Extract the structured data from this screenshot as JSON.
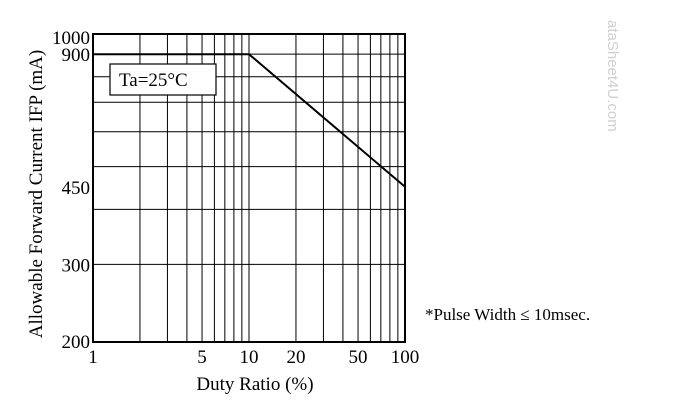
{
  "chart_data": {
    "type": "line",
    "xlabel": "Duty Ratio (%)",
    "ylabel": "Allowable Forward Current IFP (mA)",
    "x_scale": "log",
    "y_scale": "log",
    "xlim": [
      1,
      100
    ],
    "ylim": [
      200,
      1000
    ],
    "x_ticks": [
      "1",
      "5",
      "10",
      "20",
      "50",
      "100"
    ],
    "x_tick_values": [
      1,
      5,
      10,
      20,
      50,
      100
    ],
    "y_ticks": [
      "200",
      "300",
      "450",
      "900",
      "1000"
    ],
    "y_tick_values": [
      200,
      300,
      450,
      900,
      1000
    ],
    "grid": true,
    "series": [
      {
        "x": [
          1,
          10,
          100
        ],
        "y": [
          900,
          900,
          450
        ]
      }
    ],
    "annotation": "Ta=25°C",
    "note": "*Pulse Width ≤  10msec."
  },
  "watermark": "ataSheet4U.com",
  "colors": {
    "line": "#000000",
    "grid": "#000000",
    "watermark": "#cfcfcf"
  }
}
